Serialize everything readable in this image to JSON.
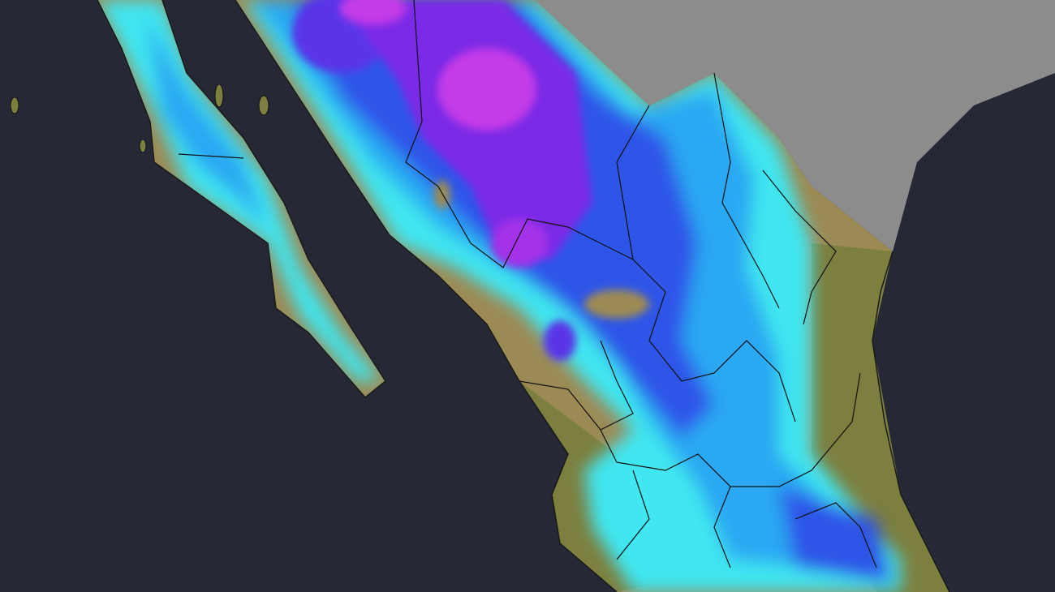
{
  "map": {
    "region": "Mexico",
    "colors": {
      "ocean": "#262935",
      "neighbor_land": "#8c8c8c",
      "land_dry": "#9c8a55",
      "land_green": "#7d7f3e",
      "overlay_light": "#3fe6f0",
      "overlay_mid": "#2aa8f2",
      "overlay_blue": "#2f55e8",
      "overlay_violet": "#7a2ae6",
      "overlay_magenta": "#c43ae8",
      "borders": "#111111"
    }
  }
}
